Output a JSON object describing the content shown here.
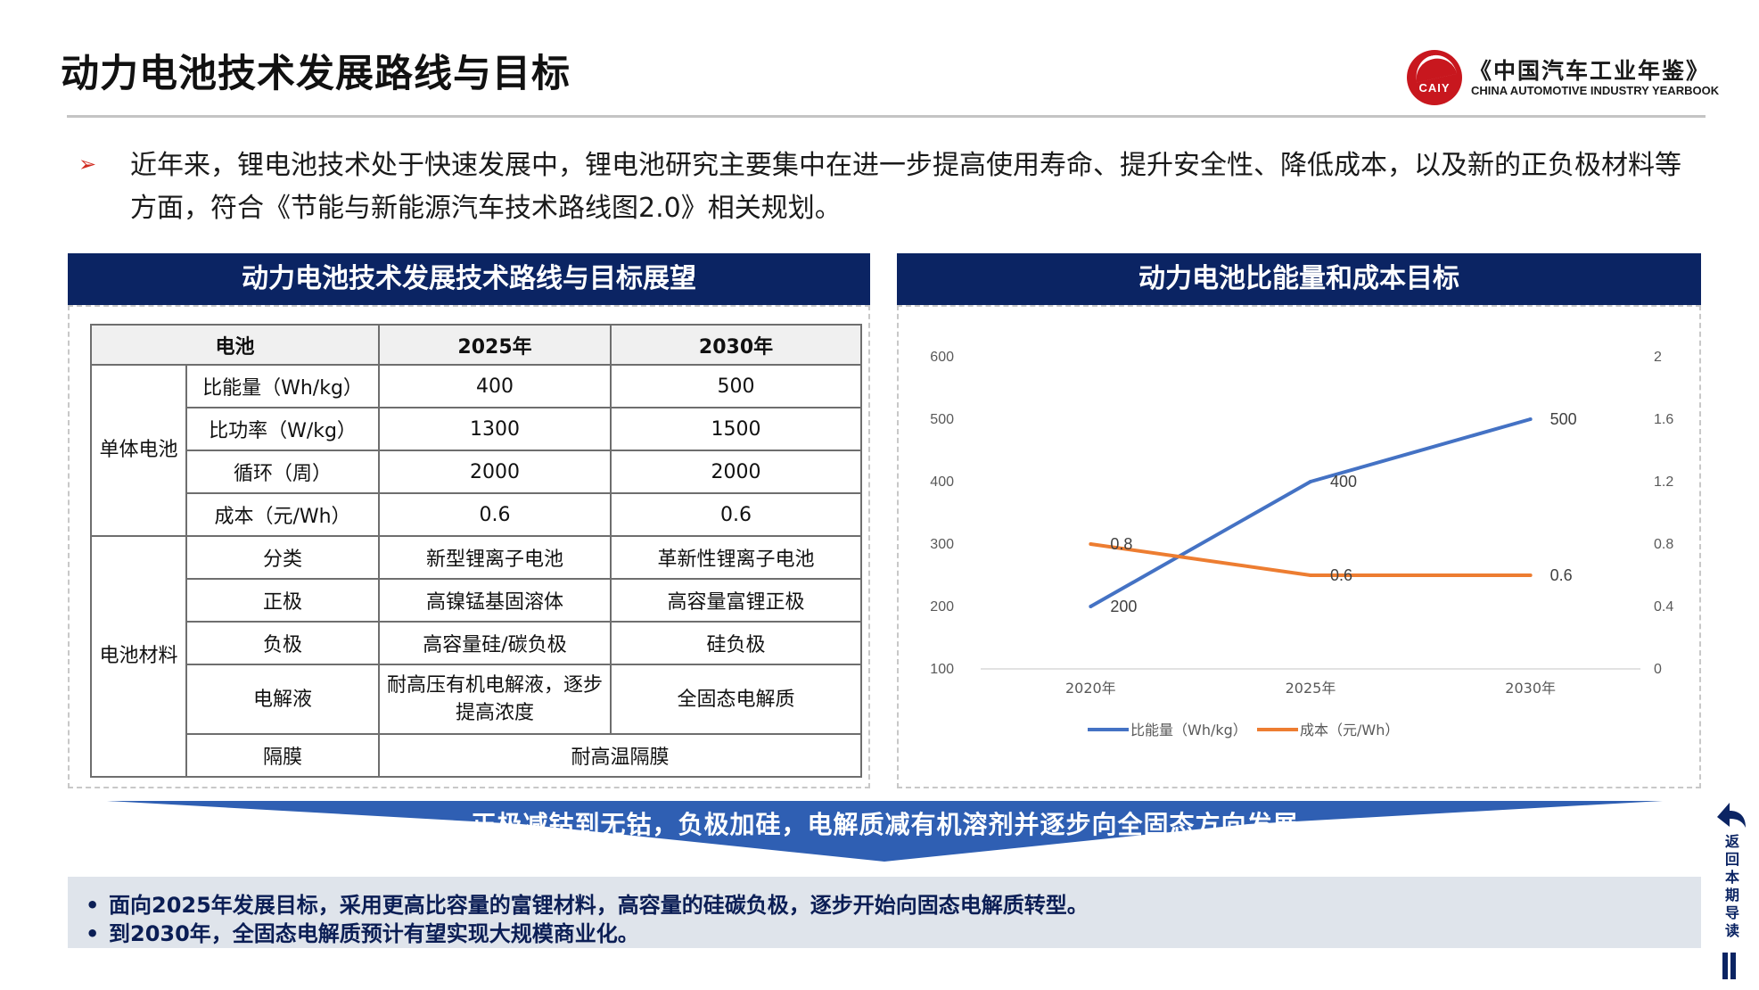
{
  "header": {
    "title": "动力电池技术发展路线与目标",
    "logo_badge": "CAIY",
    "logo_cn": "《中国汽车工业年鉴》",
    "logo_en": "CHINA AUTOMOTIVE INDUSTRY YEARBOOK"
  },
  "intro": {
    "bullet": "➢",
    "text": "近年来，锂电池技术处于快速发展中，锂电池研究主要集中在进一步提高使用寿命、提升安全性、降低成本，以及新的正负极材料等方面，符合《节能与新能源汽车技术路线图2.0》相关规划。"
  },
  "left_panel": {
    "title": "动力电池技术发展技术路线与目标展望",
    "table": {
      "headers": [
        "电池",
        "2025年",
        "2030年"
      ],
      "group1": "单体电池",
      "group2": "电池材料",
      "rows": [
        {
          "label": "比能量（Wh/kg）",
          "v2025": "400",
          "v2030": "500"
        },
        {
          "label": "比功率（W/kg）",
          "v2025": "1300",
          "v2030": "1500"
        },
        {
          "label": "循环（周）",
          "v2025": "2000",
          "v2030": "2000"
        },
        {
          "label": "成本（元/Wh）",
          "v2025": "0.6",
          "v2030": "0.6"
        },
        {
          "label": "分类",
          "v2025": "新型锂离子电池",
          "v2030": "革新性锂离子电池"
        },
        {
          "label": "正极",
          "v2025": "高镍锰基固溶体",
          "v2030": "高容量富锂正极"
        },
        {
          "label": "负极",
          "v2025": "高容量硅/碳负极",
          "v2030": "硅负极"
        },
        {
          "label": "电解液",
          "v2025": "耐高压有机电解液，逐步提高浓度",
          "v2030": "全固态电解质"
        },
        {
          "label": "隔膜",
          "merged": "耐高温隔膜"
        }
      ]
    }
  },
  "right_panel": {
    "title": "动力电池比能量和成本目标"
  },
  "chart_data": {
    "type": "line",
    "categories": [
      "2020年",
      "2025年",
      "2030年"
    ],
    "series": [
      {
        "name": "比能量（Wh/kg）",
        "axis": "left",
        "color": "#4472c4",
        "values": [
          200,
          400,
          500
        ]
      },
      {
        "name": "成本（元/Wh）",
        "axis": "right",
        "color": "#ed7d31",
        "values": [
          0.8,
          0.6,
          0.6
        ]
      }
    ],
    "data_labels": {
      "left": [
        "200",
        "400",
        "500"
      ],
      "right": [
        "0.8",
        "0.6",
        "0.6"
      ]
    },
    "y_left": {
      "range": [
        100,
        600
      ],
      "ticks": [
        "100",
        "200",
        "300",
        "400",
        "500",
        "600"
      ]
    },
    "y_right": {
      "range": [
        0,
        2
      ],
      "ticks": [
        "0",
        "0.4",
        "0.8",
        "1.2",
        "1.6",
        "2"
      ]
    },
    "grid": false,
    "legend_position": "bottom"
  },
  "banner": {
    "text": "正极减钴到无钴，负极加硅，电解质减有机溶剂并逐步向全固态方向发展"
  },
  "summary": {
    "bullet": "•",
    "line1": "面向2025年发展目标，采用更高比容量的富锂材料，高容量的硅碳负极，逐步开始向固态电解质转型。",
    "line2": "到2030年，全固态电解质预计有望实现大规模商业化。"
  },
  "nav": {
    "back_label": "返回本期导读"
  },
  "colors": {
    "navy": "#0b2463",
    "banner_blue": "#2f5fb3",
    "accent_red": "#c8171e"
  }
}
